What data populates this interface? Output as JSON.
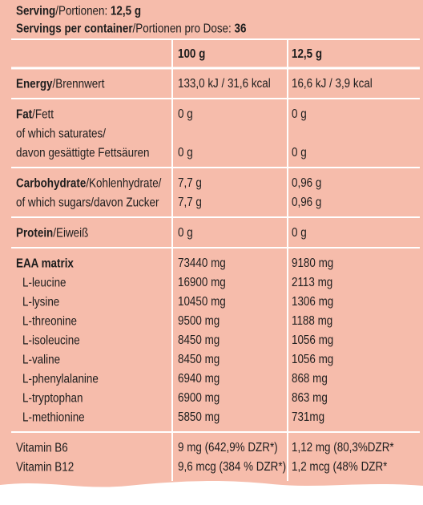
{
  "header": {
    "lines": [
      [
        {
          "text": "Serving",
          "bold": true
        },
        {
          "text": "/Portionen: ",
          "bold": false
        },
        {
          "text": "12,5 g",
          "bold": true
        }
      ],
      [
        {
          "text": "Servings per container",
          "bold": true
        },
        {
          "text": "/Portionen pro Dose: ",
          "bold": false
        },
        {
          "text": "36",
          "bold": true
        }
      ]
    ]
  },
  "table": {
    "columns": [
      "100 g",
      "12,5 g"
    ],
    "groups": [
      [
        {
          "label": [
            {
              "text": "Energy",
              "bold": true
            },
            {
              "text": "/Brennwert",
              "bold": false
            }
          ],
          "values": [
            "133,0 kJ / 31,6 kcal",
            "16,6 kJ / 3,9 kcal"
          ]
        }
      ],
      [
        {
          "label": [
            {
              "text": "Fat",
              "bold": true
            },
            {
              "text": "/Fett",
              "bold": false
            }
          ],
          "values": [
            "0 g",
            "0 g"
          ]
        },
        {
          "label": [
            {
              "text": "of which saturates/",
              "bold": false
            }
          ],
          "values": []
        },
        {
          "label": [
            {
              "text": "davon gesättigte Fettsäuren",
              "bold": false
            }
          ],
          "values": [
            "0 g",
            "0 g"
          ]
        }
      ],
      [
        {
          "label": [
            {
              "text": "Carbohydrate",
              "bold": true
            },
            {
              "text": "/Kohlenhydrate/",
              "bold": false
            }
          ],
          "values": [
            "7,7 g",
            "0,96 g"
          ]
        },
        {
          "label": [
            {
              "text": "of which sugars/davon Zucker",
              "bold": false
            }
          ],
          "values": [
            "7,7 g",
            "0,96 g"
          ]
        }
      ],
      [
        {
          "label": [
            {
              "text": "Protein",
              "bold": true
            },
            {
              "text": "/Eiweiß",
              "bold": false
            }
          ],
          "values": [
            "0 g",
            "0 g"
          ]
        }
      ],
      [
        {
          "label": [
            {
              "text": "EAA matrix",
              "bold": true
            }
          ],
          "values": [
            "73440 mg",
            "9180 mg"
          ]
        },
        {
          "label": [
            {
              "text": "L-leucine",
              "bold": false
            }
          ],
          "indent": true,
          "values": [
            "16900 mg",
            "2113 mg"
          ]
        },
        {
          "label": [
            {
              "text": "L-lysine",
              "bold": false
            }
          ],
          "indent": true,
          "values": [
            "10450 mg",
            "1306 mg"
          ]
        },
        {
          "label": [
            {
              "text": "L-threonine",
              "bold": false
            }
          ],
          "indent": true,
          "values": [
            "9500 mg",
            "1188 mg"
          ]
        },
        {
          "label": [
            {
              "text": "L-isoleucine",
              "bold": false
            }
          ],
          "indent": true,
          "values": [
            "8450 mg",
            "1056 mg"
          ]
        },
        {
          "label": [
            {
              "text": "L-valine",
              "bold": false
            }
          ],
          "indent": true,
          "values": [
            "8450 mg",
            "1056 mg"
          ]
        },
        {
          "label": [
            {
              "text": "L-phenylalanine",
              "bold": false
            }
          ],
          "indent": true,
          "values": [
            "6940 mg",
            "868 mg"
          ]
        },
        {
          "label": [
            {
              "text": "L-tryptophan",
              "bold": false
            }
          ],
          "indent": true,
          "values": [
            "6900 mg",
            "863 mg"
          ]
        },
        {
          "label": [
            {
              "text": "L-methionine",
              "bold": false
            }
          ],
          "indent": true,
          "values": [
            "5850 mg",
            "731mg"
          ]
        }
      ],
      [
        {
          "label": [
            {
              "text": "Vitamin B6",
              "bold": false
            }
          ],
          "values": [
            "9 mg (642,9% DZR*)",
            "1,12 mg (80,3%DZR*"
          ]
        },
        {
          "label": [
            {
              "text": "Vitamin B12",
              "bold": false
            }
          ],
          "values": [
            "9,6 mcg (384 % DZR*)",
            "1,2 mcg (48% DZR*"
          ]
        }
      ]
    ]
  }
}
